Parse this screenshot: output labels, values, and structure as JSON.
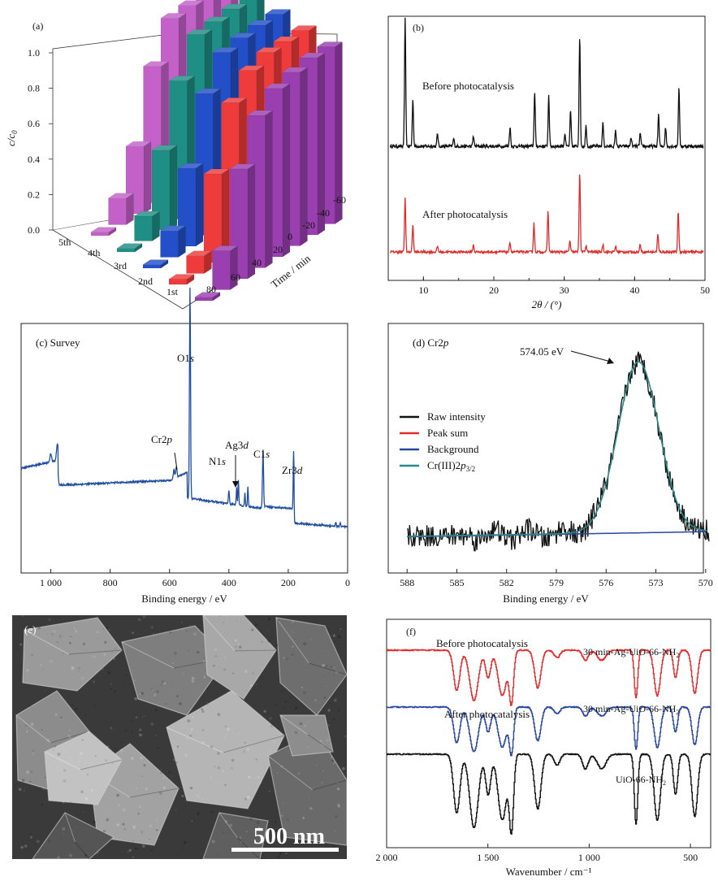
{
  "colors": {
    "black": "#111111",
    "red": "#e12a2a",
    "blue": "#2646a0",
    "teal": "#2a8a8a",
    "navy": "#1f4ea0",
    "pink": "#c361c8",
    "tealbar": "#1f8e84",
    "bluebar": "#2350c8",
    "redbar": "#ee3b3b",
    "purple": "#9a3fb0"
  },
  "panel_a": {
    "label": "(a)",
    "ylabel_main": "c/c",
    "ylabel_sub": "0",
    "xlabel": "Time / min",
    "yticks": [
      "0.0",
      "0.2",
      "0.4",
      "0.6",
      "0.8",
      "1.0"
    ],
    "run_labels": [
      "1st",
      "2nd",
      "3rd",
      "4th",
      "5th"
    ],
    "time_labels": [
      "80",
      "60",
      "40",
      "20",
      "0",
      "-20",
      "-40",
      "-60"
    ]
  },
  "panel_b": {
    "label": "(b)",
    "xlabel": "2θ / (°)",
    "xticks": [
      "10",
      "20",
      "30",
      "40",
      "50"
    ],
    "annotations": [
      "Before photocatalysis",
      "After photocatalysis"
    ]
  },
  "panel_c": {
    "label": "(c) Survey",
    "xlabel": "Binding energy / eV",
    "xticks": [
      "1 000",
      "800",
      "600",
      "400",
      "200",
      "0"
    ],
    "peaks": [
      "O1s",
      "Cr2p",
      "Ag3d",
      "N1s",
      "C1s",
      "Zr3d"
    ]
  },
  "panel_d": {
    "label": "(d) Cr2p",
    "xlabel": "Binding energy / eV",
    "xticks": [
      "588",
      "585",
      "582",
      "579",
      "576",
      "573",
      "570"
    ],
    "peak_label": "574.05 eV",
    "legend": [
      "Raw intensity",
      "Peak sum",
      "Background",
      "Cr(III)2p3/2"
    ]
  },
  "panel_e": {
    "label": "(e)",
    "scalebar": "500 nm"
  },
  "panel_f": {
    "label": "(f)",
    "xlabel": "Wavenumber / cm⁻¹",
    "xticks": [
      "2 000",
      "1 500",
      "1 000",
      "500"
    ],
    "annotations": [
      "Before photocatalysis",
      "After photocatalysis"
    ],
    "sample_labels": [
      "30 min-Ag-UiO-66-NH2",
      "30 min-Ag-UiO-66-NH2",
      "UiO-66-NH2"
    ]
  },
  "chart_data": [
    {
      "type": "bar",
      "panel": "(a)",
      "title": "",
      "zlabel": "c/c0",
      "xlabel": "Time / min",
      "categories": [
        "-60",
        "-40",
        "-20",
        "0",
        "20",
        "40",
        "60",
        "80"
      ],
      "zlim": [
        0,
        1.0
      ],
      "series": [
        {
          "name": "1st",
          "values": [
            1.0,
            1.0,
            0.98,
            0.95,
            0.86,
            0.62,
            0.22,
            0.02
          ]
        },
        {
          "name": "2nd",
          "values": [
            1.0,
            1.0,
            1.0,
            0.96,
            0.84,
            0.5,
            0.1,
            0.03
          ]
        },
        {
          "name": "3rd",
          "values": [
            1.0,
            1.0,
            0.99,
            0.97,
            0.8,
            0.44,
            0.15,
            0.02
          ]
        },
        {
          "name": "4th",
          "values": [
            1.0,
            1.0,
            0.99,
            0.98,
            0.78,
            0.45,
            0.14,
            0.02
          ]
        },
        {
          "name": "5th",
          "values": [
            1.0,
            1.0,
            0.99,
            0.98,
            0.77,
            0.38,
            0.15,
            0.02
          ]
        }
      ]
    },
    {
      "type": "line",
      "panel": "(b)",
      "xlabel": "2θ / (°)",
      "xlim": [
        5,
        50
      ],
      "series": [
        {
          "name": "Before photocatalysis",
          "peaks_x": [
            7.4,
            8.5,
            12.0,
            14.3,
            17.1,
            22.3,
            25.8,
            27.8,
            30.1,
            30.9,
            32.2,
            33.1,
            35.5,
            37.3,
            39.5,
            40.8,
            43.4,
            44.4,
            46.3
          ],
          "peaks_y": [
            1.0,
            0.36,
            0.1,
            0.06,
            0.08,
            0.15,
            0.42,
            0.4,
            0.1,
            0.27,
            0.86,
            0.16,
            0.18,
            0.12,
            0.07,
            0.1,
            0.25,
            0.15,
            0.45
          ]
        },
        {
          "name": "After photocatalysis",
          "peaks_x": [
            7.4,
            8.5,
            12.0,
            17.1,
            22.3,
            25.7,
            27.7,
            30.8,
            32.2,
            33.1,
            35.5,
            37.3,
            40.8,
            43.3,
            46.2
          ],
          "peaks_y": [
            0.55,
            0.28,
            0.06,
            0.07,
            0.1,
            0.3,
            0.42,
            0.12,
            0.82,
            0.07,
            0.08,
            0.06,
            0.08,
            0.18,
            0.42
          ]
        }
      ]
    },
    {
      "type": "line",
      "panel": "(c)",
      "xlabel": "Binding energy / eV",
      "xlim": [
        1100,
        0
      ],
      "peaks": [
        {
          "label": "O1s",
          "x": 531,
          "y": 1.0
        },
        {
          "label": "Cr2p",
          "x": 577,
          "y": 0.44
        },
        {
          "label": "N1s",
          "x": 400,
          "y": 0.32
        },
        {
          "label": "Ag3d",
          "x": 368,
          "y": 0.36
        },
        {
          "label": "C1s",
          "x": 285,
          "y": 0.44
        },
        {
          "label": "Zr3d",
          "x": 182,
          "y": 0.33
        }
      ]
    },
    {
      "type": "line",
      "panel": "(d)",
      "xlabel": "Binding energy / eV",
      "xlim": [
        588.5,
        569.5
      ],
      "fit_peak": {
        "center": 574.05,
        "label": "574.05 eV"
      },
      "series": [
        {
          "name": "Raw intensity"
        },
        {
          "name": "Peak sum"
        },
        {
          "name": "Background"
        },
        {
          "name": "Cr(III)2p3/2"
        }
      ]
    },
    {
      "type": "line",
      "panel": "(f)",
      "xlabel": "Wavenumber / cm⁻¹",
      "xlim": [
        2000,
        400
      ],
      "series": [
        {
          "name": "30 min-Ag-UiO-66-NH2"
        },
        {
          "name": "30 min-Ag-UiO-66-NH2"
        },
        {
          "name": "UiO-66-NH2"
        }
      ]
    }
  ]
}
